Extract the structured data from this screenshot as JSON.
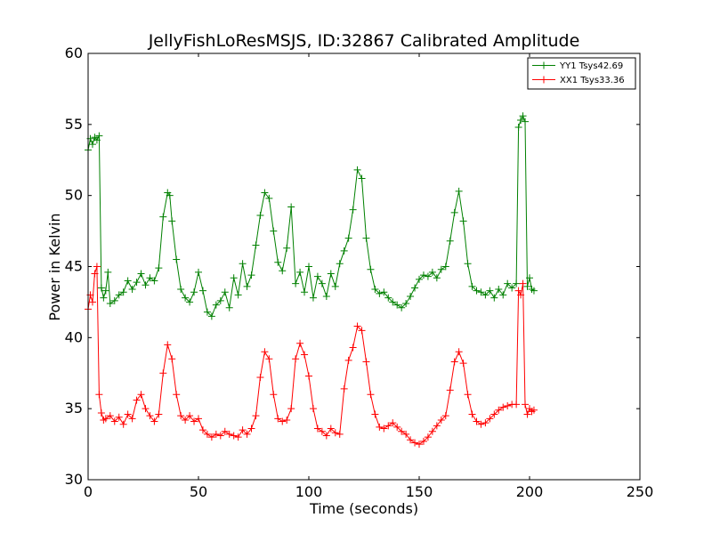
{
  "chart_data": {
    "type": "line",
    "title": "JellyFishLoResMSJS, ID:32867 Calibrated Amplitude",
    "xlabel": "Time (seconds)",
    "ylabel": "Power in Kelvin",
    "xlim": [
      0,
      250
    ],
    "ylim": [
      30,
      60
    ],
    "x_ticks": [
      "0",
      "50",
      "100",
      "150",
      "200",
      "250"
    ],
    "y_ticks": [
      "30",
      "35",
      "40",
      "45",
      "50",
      "55",
      "60"
    ],
    "grid": false,
    "legend_placement": "top-right",
    "marker": "+",
    "series": [
      {
        "name": "YY1 Tsys42.69",
        "color": "#008000",
        "points": [
          [
            0,
            53.2
          ],
          [
            1,
            54.0
          ],
          [
            2,
            53.6
          ],
          [
            3,
            54.1
          ],
          [
            4,
            53.9
          ],
          [
            5,
            54.2
          ],
          [
            6,
            43.5
          ],
          [
            7,
            42.8
          ],
          [
            8,
            43.3
          ],
          [
            9,
            44.6
          ],
          [
            10,
            42.4
          ],
          [
            12,
            42.6
          ],
          [
            14,
            43.0
          ],
          [
            16,
            43.2
          ],
          [
            18,
            44.0
          ],
          [
            20,
            43.4
          ],
          [
            22,
            43.9
          ],
          [
            24,
            44.5
          ],
          [
            26,
            43.7
          ],
          [
            28,
            44.2
          ],
          [
            30,
            44.0
          ],
          [
            32,
            44.9
          ],
          [
            34,
            48.5
          ],
          [
            36,
            50.2
          ],
          [
            37,
            50.0
          ],
          [
            38,
            48.2
          ],
          [
            40,
            45.5
          ],
          [
            42,
            43.4
          ],
          [
            44,
            42.8
          ],
          [
            46,
            42.5
          ],
          [
            48,
            43.2
          ],
          [
            50,
            44.6
          ],
          [
            52,
            43.3
          ],
          [
            54,
            41.8
          ],
          [
            56,
            41.5
          ],
          [
            58,
            42.3
          ],
          [
            60,
            42.6
          ],
          [
            62,
            43.2
          ],
          [
            64,
            42.1
          ],
          [
            66,
            44.2
          ],
          [
            68,
            43.0
          ],
          [
            70,
            45.2
          ],
          [
            72,
            43.6
          ],
          [
            74,
            44.4
          ],
          [
            76,
            46.5
          ],
          [
            78,
            48.6
          ],
          [
            80,
            50.2
          ],
          [
            82,
            49.8
          ],
          [
            84,
            47.5
          ],
          [
            86,
            45.3
          ],
          [
            88,
            44.7
          ],
          [
            90,
            46.3
          ],
          [
            92,
            49.2
          ],
          [
            94,
            43.8
          ],
          [
            96,
            44.6
          ],
          [
            98,
            43.2
          ],
          [
            100,
            45.0
          ],
          [
            102,
            42.8
          ],
          [
            104,
            44.3
          ],
          [
            106,
            43.8
          ],
          [
            108,
            42.9
          ],
          [
            110,
            44.5
          ],
          [
            112,
            43.6
          ],
          [
            114,
            45.2
          ],
          [
            116,
            46.1
          ],
          [
            118,
            47.0
          ],
          [
            120,
            49.0
          ],
          [
            122,
            51.8
          ],
          [
            124,
            51.2
          ],
          [
            126,
            47.0
          ],
          [
            128,
            44.8
          ],
          [
            130,
            43.4
          ],
          [
            132,
            43.1
          ],
          [
            134,
            43.2
          ],
          [
            136,
            42.8
          ],
          [
            138,
            42.5
          ],
          [
            140,
            42.3
          ],
          [
            142,
            42.1
          ],
          [
            144,
            42.4
          ],
          [
            146,
            42.9
          ],
          [
            148,
            43.5
          ],
          [
            150,
            44.1
          ],
          [
            152,
            44.4
          ],
          [
            154,
            44.3
          ],
          [
            156,
            44.6
          ],
          [
            158,
            44.2
          ],
          [
            160,
            44.8
          ],
          [
            162,
            45.0
          ],
          [
            164,
            46.8
          ],
          [
            166,
            48.8
          ],
          [
            168,
            50.3
          ],
          [
            170,
            48.2
          ],
          [
            172,
            45.2
          ],
          [
            174,
            43.6
          ],
          [
            176,
            43.3
          ],
          [
            178,
            43.2
          ],
          [
            180,
            43.0
          ],
          [
            182,
            43.3
          ],
          [
            184,
            42.8
          ],
          [
            186,
            43.4
          ],
          [
            188,
            43.0
          ],
          [
            190,
            43.8
          ],
          [
            192,
            43.5
          ],
          [
            194,
            43.8
          ],
          [
            195,
            54.8
          ],
          [
            196,
            55.3
          ],
          [
            197,
            55.6
          ],
          [
            198,
            55.2
          ],
          [
            199,
            43.6
          ],
          [
            200,
            44.2
          ],
          [
            201,
            43.4
          ],
          [
            202,
            43.3
          ]
        ]
      },
      {
        "name": "XX1 Tsys33.36",
        "color": "#ff0000",
        "points": [
          [
            0,
            42.0
          ],
          [
            1,
            43.0
          ],
          [
            2,
            42.5
          ],
          [
            3,
            44.5
          ],
          [
            4,
            45.0
          ],
          [
            5,
            36.0
          ],
          [
            6,
            34.7
          ],
          [
            7,
            34.2
          ],
          [
            8,
            34.3
          ],
          [
            10,
            34.5
          ],
          [
            12,
            34.1
          ],
          [
            14,
            34.4
          ],
          [
            16,
            33.9
          ],
          [
            18,
            34.6
          ],
          [
            20,
            34.3
          ],
          [
            22,
            35.6
          ],
          [
            24,
            36.0
          ],
          [
            26,
            35.0
          ],
          [
            28,
            34.5
          ],
          [
            30,
            34.1
          ],
          [
            32,
            34.6
          ],
          [
            34,
            37.5
          ],
          [
            36,
            39.5
          ],
          [
            38,
            38.5
          ],
          [
            40,
            36.0
          ],
          [
            42,
            34.5
          ],
          [
            44,
            34.2
          ],
          [
            46,
            34.5
          ],
          [
            48,
            34.1
          ],
          [
            50,
            34.3
          ],
          [
            52,
            33.5
          ],
          [
            54,
            33.2
          ],
          [
            56,
            33.0
          ],
          [
            58,
            33.2
          ],
          [
            60,
            33.1
          ],
          [
            62,
            33.4
          ],
          [
            64,
            33.2
          ],
          [
            66,
            33.1
          ],
          [
            68,
            33.0
          ],
          [
            70,
            33.5
          ],
          [
            72,
            33.2
          ],
          [
            74,
            33.6
          ],
          [
            76,
            34.5
          ],
          [
            78,
            37.2
          ],
          [
            80,
            39.0
          ],
          [
            82,
            38.5
          ],
          [
            84,
            36.0
          ],
          [
            86,
            34.3
          ],
          [
            88,
            34.1
          ],
          [
            90,
            34.2
          ],
          [
            92,
            35.0
          ],
          [
            94,
            38.5
          ],
          [
            96,
            39.6
          ],
          [
            98,
            38.8
          ],
          [
            100,
            37.3
          ],
          [
            102,
            35.0
          ],
          [
            104,
            33.6
          ],
          [
            106,
            33.4
          ],
          [
            108,
            33.1
          ],
          [
            110,
            33.6
          ],
          [
            112,
            33.3
          ],
          [
            114,
            33.2
          ],
          [
            116,
            36.4
          ],
          [
            118,
            38.4
          ],
          [
            120,
            39.3
          ],
          [
            122,
            40.8
          ],
          [
            124,
            40.5
          ],
          [
            126,
            38.3
          ],
          [
            128,
            36.0
          ],
          [
            130,
            34.6
          ],
          [
            132,
            33.7
          ],
          [
            134,
            33.6
          ],
          [
            136,
            33.8
          ],
          [
            138,
            34.0
          ],
          [
            140,
            33.7
          ],
          [
            142,
            33.4
          ],
          [
            144,
            33.2
          ],
          [
            146,
            32.8
          ],
          [
            148,
            32.6
          ],
          [
            150,
            32.5
          ],
          [
            152,
            32.7
          ],
          [
            154,
            33.0
          ],
          [
            156,
            33.4
          ],
          [
            158,
            33.8
          ],
          [
            160,
            34.2
          ],
          [
            162,
            34.5
          ],
          [
            164,
            36.3
          ],
          [
            166,
            38.3
          ],
          [
            168,
            39.0
          ],
          [
            170,
            38.2
          ],
          [
            172,
            36.0
          ],
          [
            174,
            34.6
          ],
          [
            176,
            34.1
          ],
          [
            178,
            33.9
          ],
          [
            180,
            34.0
          ],
          [
            182,
            34.3
          ],
          [
            184,
            34.6
          ],
          [
            186,
            34.9
          ],
          [
            188,
            35.1
          ],
          [
            190,
            35.2
          ],
          [
            192,
            35.3
          ],
          [
            194,
            35.3
          ],
          [
            195,
            43.3
          ],
          [
            196,
            43.0
          ],
          [
            197,
            43.8
          ],
          [
            198,
            35.3
          ],
          [
            199,
            34.6
          ],
          [
            200,
            35.0
          ],
          [
            201,
            34.8
          ],
          [
            202,
            34.9
          ]
        ]
      }
    ]
  }
}
